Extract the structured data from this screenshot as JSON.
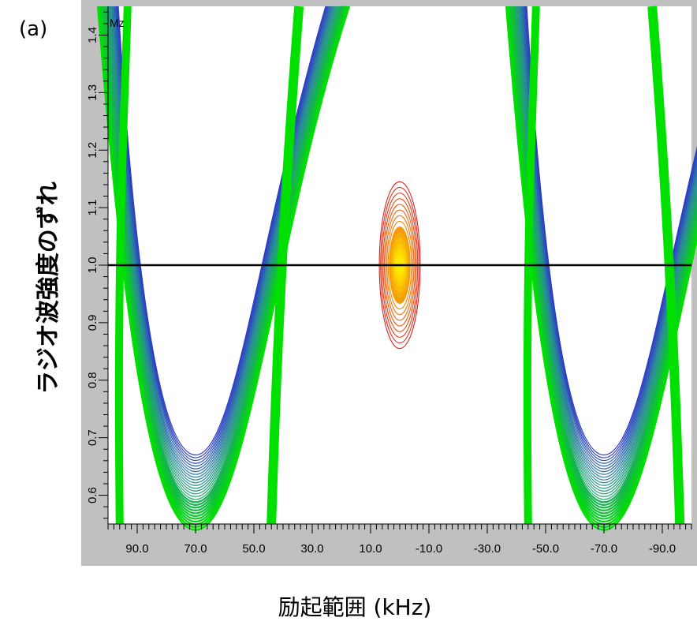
{
  "panel_label": "(a)",
  "colors": {
    "plot_background": "#ffffff",
    "frame_background": "#c0c0c0",
    "contour_low": "#2b36c8",
    "contour_mid": "#00e000",
    "contour_peak_outer": "#e02020",
    "contour_peak_inner": "#ffe800",
    "reference_line": "#000000"
  },
  "chart_data": {
    "type": "contour",
    "variable_label": "Mz",
    "xlabel": "励起範囲 (kHz)",
    "ylabel": "ラジオ波強度のずれ",
    "xlim": [
      100,
      -100
    ],
    "ylim": [
      0.55,
      1.45
    ],
    "x_ticks": [
      90,
      70,
      50,
      30,
      10,
      -10,
      -30,
      -50,
      -70,
      -90
    ],
    "x_tick_labels": [
      "90.0",
      "70.0",
      "50.0",
      "30.0",
      "10.0",
      "-10.0",
      "-30.0",
      "-50.0",
      "-70.0",
      "-90.0"
    ],
    "y_ticks": [
      0.6,
      0.7,
      0.8,
      0.9,
      1.0,
      1.1,
      1.2,
      1.3,
      1.4
    ],
    "y_tick_labels": [
      "0.6",
      "0.7",
      "0.8",
      "0.9",
      "1.0",
      "1.1",
      "1.2",
      "1.3",
      "1.4"
    ],
    "reference_line_y": 1.0,
    "excitation_peak": {
      "center_x": 0,
      "center_y": 1.0,
      "half_width_x": 7,
      "y_range": [
        0.86,
        1.15
      ]
    },
    "valleys": [
      {
        "min_x": 70,
        "min_y": 0.67
      },
      {
        "min_x": -70,
        "min_y": 0.67
      }
    ]
  }
}
